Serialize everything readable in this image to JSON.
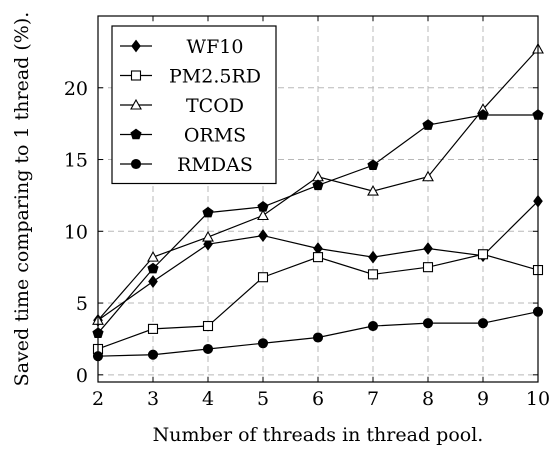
{
  "chart_data": {
    "type": "line",
    "xlabel": "Number of threads in thread pool.",
    "ylabel": "Saved time comparing to 1 thread (%).",
    "xlim": [
      2,
      10
    ],
    "ylim": [
      -0.5,
      25
    ],
    "x": [
      2,
      3,
      4,
      5,
      6,
      7,
      8,
      9,
      10
    ],
    "xticks": [
      "2",
      "3",
      "4",
      "5",
      "6",
      "7",
      "8",
      "9",
      "10"
    ],
    "yticks": [
      "0",
      "5",
      "10",
      "15",
      "20"
    ],
    "ytick_values": [
      0,
      5,
      10,
      15,
      20
    ],
    "grid": true,
    "legend_position": "top-left",
    "series": [
      {
        "name": "WF10",
        "marker": "diamond-filled",
        "values": [
          3.8,
          6.5,
          9.1,
          9.7,
          8.8,
          8.2,
          8.8,
          8.3,
          12.1
        ]
      },
      {
        "name": "PM2.5RD",
        "marker": "square-open",
        "values": [
          1.8,
          3.2,
          3.4,
          6.8,
          8.2,
          7.0,
          7.5,
          8.4,
          7.3
        ]
      },
      {
        "name": "TCOD",
        "marker": "triangle-open",
        "values": [
          3.8,
          8.2,
          9.6,
          11.1,
          13.8,
          12.8,
          13.8,
          18.5,
          22.7
        ]
      },
      {
        "name": "ORMS",
        "marker": "pentagon-filled",
        "values": [
          2.9,
          7.4,
          11.3,
          11.7,
          13.2,
          14.6,
          17.4,
          18.1,
          18.1
        ]
      },
      {
        "name": "RMDAS",
        "marker": "circle-filled",
        "values": [
          1.3,
          1.4,
          1.8,
          2.2,
          2.6,
          3.4,
          3.6,
          3.6,
          4.4
        ]
      }
    ]
  }
}
